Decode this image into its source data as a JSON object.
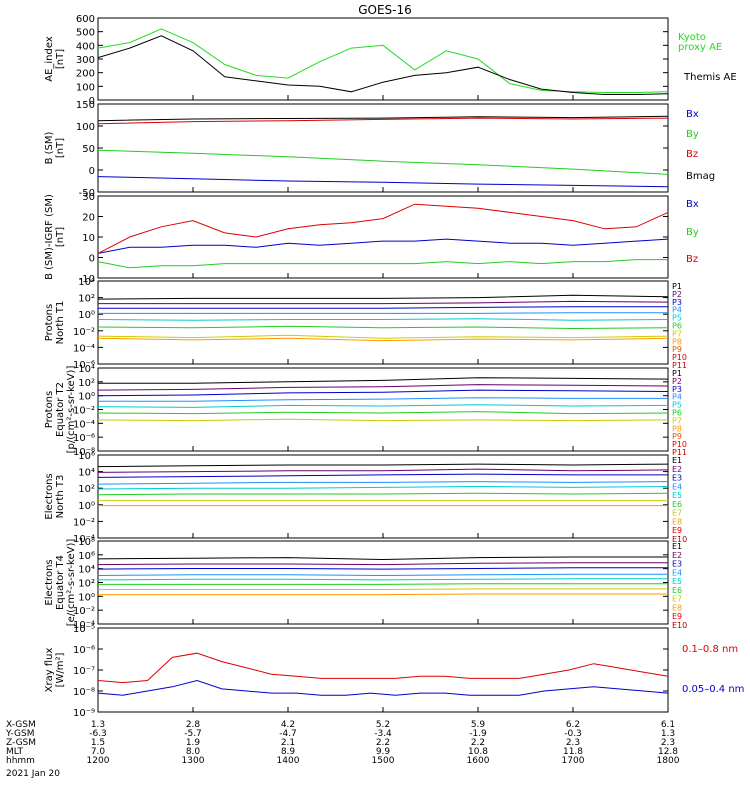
{
  "title": "GOES-16",
  "chart_data": [
    {
      "type": "line",
      "ylabel": "AE_index\n[nT]",
      "ylim": [
        0,
        600
      ],
      "yticks": [
        "600",
        "500",
        "400",
        "300",
        "200",
        "100",
        "0"
      ],
      "x": [
        "1200",
        "1220",
        "1240",
        "1300",
        "1320",
        "1340",
        "1400",
        "1420",
        "1440",
        "1500",
        "1520",
        "1540",
        "1600",
        "1620",
        "1640",
        "1700",
        "1720",
        "1740",
        "1800"
      ],
      "series": [
        {
          "name": "Kyoto\nproxy AE",
          "color": "#22dd22",
          "values": [
            380,
            420,
            520,
            420,
            260,
            180,
            160,
            280,
            380,
            400,
            220,
            360,
            300,
            120,
            70,
            60,
            55,
            55,
            60
          ]
        },
        {
          "name": "Themis AE",
          "color": "#000000",
          "values": [
            310,
            380,
            470,
            360,
            170,
            140,
            110,
            100,
            60,
            130,
            180,
            200,
            240,
            150,
            80,
            55,
            40,
            40,
            45
          ]
        }
      ]
    },
    {
      "type": "line",
      "ylabel": "B (SM)\n[nT]",
      "ylim": [
        -50,
        150
      ],
      "yticks": [
        "150",
        "100",
        "50",
        "0",
        "-50"
      ],
      "x": [
        "1200",
        "1300",
        "1400",
        "1500",
        "1600",
        "1700",
        "1800"
      ],
      "series": [
        {
          "name": "Bx",
          "color": "#0000cc",
          "values": [
            -15,
            -20,
            -25,
            -28,
            -32,
            -35,
            -38
          ]
        },
        {
          "name": "By",
          "color": "#22cc22",
          "values": [
            45,
            38,
            30,
            20,
            12,
            2,
            -10
          ]
        },
        {
          "name": "Bz",
          "color": "#dd0000",
          "values": [
            105,
            110,
            112,
            115,
            118,
            116,
            118
          ]
        },
        {
          "name": "Bmag",
          "color": "#000000",
          "values": [
            112,
            116,
            117,
            118,
            121,
            119,
            122
          ]
        }
      ]
    },
    {
      "type": "line",
      "ylabel": "B (SM)-IGRF (SM)\n[nT]",
      "ylim": [
        -10,
        30
      ],
      "yticks": [
        "30",
        "20",
        "10",
        "0",
        "-10"
      ],
      "x": [
        "1200",
        "1220",
        "1240",
        "1300",
        "1320",
        "1340",
        "1400",
        "1420",
        "1440",
        "1500",
        "1520",
        "1540",
        "1600",
        "1620",
        "1640",
        "1700",
        "1720",
        "1740",
        "1800"
      ],
      "series": [
        {
          "name": "Bx",
          "color": "#0000cc",
          "values": [
            2,
            5,
            5,
            6,
            6,
            5,
            7,
            6,
            7,
            8,
            8,
            9,
            8,
            7,
            7,
            6,
            7,
            8,
            9
          ]
        },
        {
          "name": "By",
          "color": "#22cc22",
          "values": [
            -2,
            -5,
            -4,
            -4,
            -3,
            -3,
            -3,
            -3,
            -3,
            -3,
            -3,
            -2,
            -3,
            -2,
            -3,
            -2,
            -2,
            -1,
            -1
          ]
        },
        {
          "name": "Bz",
          "color": "#dd0000",
          "values": [
            2,
            10,
            15,
            18,
            12,
            10,
            14,
            16,
            17,
            19,
            26,
            25,
            24,
            22,
            20,
            18,
            14,
            15,
            22
          ]
        }
      ]
    },
    {
      "type": "line",
      "ylabel": "Protons\nNorth T1",
      "ylim_log": [
        -7,
        4
      ],
      "yticks": [
        "10⁴",
        "10²",
        "10⁰",
        "10⁻²",
        "10⁻⁴",
        "10⁻⁶"
      ],
      "legend": [
        "P1",
        "P2",
        "P3",
        "P4",
        "P5",
        "P6",
        "P7",
        "P8",
        "P9",
        "P10",
        "P11"
      ],
      "series": [
        {
          "name": "P1",
          "color": "#000000",
          "log_values": [
            1.6,
            1.7,
            1.7,
            1.7,
            1.8,
            2.1,
            1.9
          ]
        },
        {
          "name": "P2",
          "color": "#6a006a",
          "log_values": [
            1.0,
            1.0,
            1.0,
            1.0,
            1.1,
            1.3,
            1.2
          ]
        },
        {
          "name": "P3",
          "color": "#0000cc",
          "log_values": [
            0.4,
            0.4,
            0.4,
            0.4,
            0.5,
            0.6,
            0.6
          ]
        },
        {
          "name": "P4",
          "color": "#1e90ff",
          "log_values": [
            -0.3,
            -0.3,
            -0.3,
            -0.3,
            -0.3,
            -0.2,
            -0.2
          ]
        },
        {
          "name": "P5",
          "color": "#00cccc",
          "log_values": [
            -1.1,
            -1.2,
            -1.1,
            -1.1,
            -1.0,
            -1.2,
            -1.1
          ]
        },
        {
          "name": "P6",
          "color": "#22cc22",
          "log_values": [
            -2.1,
            -2.2,
            -2.0,
            -2.2,
            -2.1,
            -2.3,
            -2.2
          ]
        },
        {
          "name": "P7",
          "color": "#cccc00",
          "log_values": [
            -3.3,
            -3.5,
            -3.2,
            -3.6,
            -3.4,
            -3.5,
            -3.3
          ]
        },
        {
          "name": "P8",
          "color": "#ff9900",
          "log_values": [
            -3.6,
            -3.8,
            -3.6,
            -3.9,
            -3.7,
            -3.8,
            -3.6
          ]
        }
      ],
      "legend_colors": [
        "#000000",
        "#6a006a",
        "#0000cc",
        "#1e90ff",
        "#00cccc",
        "#22cc22",
        "#cccc00",
        "#ff9900",
        "#dd5500",
        "#dd0000",
        "#cc0000"
      ]
    },
    {
      "type": "line",
      "ylabel": "Protons\nEquator T2\n[p/(cm²-s-sr-keV)]",
      "ylim_log": [
        -8,
        4
      ],
      "yticks": [
        "10⁴",
        "10²",
        "10⁰",
        "10⁻²",
        "10⁻⁴",
        "10⁻⁶",
        "10⁻⁸"
      ],
      "legend": [
        "P1",
        "P2",
        "P3",
        "P4",
        "P5",
        "P6",
        "P7",
        "P8",
        "P9",
        "P10",
        "P11"
      ],
      "series": [
        {
          "name": "P1",
          "color": "#000000",
          "log_values": [
            1.8,
            1.8,
            2.0,
            2.2,
            2.6,
            2.5,
            2.4
          ]
        },
        {
          "name": "P2",
          "color": "#6a006a",
          "log_values": [
            0.8,
            0.9,
            1.2,
            1.3,
            1.6,
            1.5,
            1.4
          ]
        },
        {
          "name": "P3",
          "color": "#0000cc",
          "log_values": [
            0.0,
            0.1,
            0.4,
            0.5,
            0.8,
            0.7,
            0.6
          ]
        },
        {
          "name": "P4",
          "color": "#1e90ff",
          "log_values": [
            -0.8,
            -0.8,
            -0.6,
            -0.5,
            -0.3,
            -0.4,
            -0.4
          ]
        },
        {
          "name": "P5",
          "color": "#00cccc",
          "log_values": [
            -1.6,
            -1.7,
            -1.4,
            -1.5,
            -1.3,
            -1.5,
            -1.4
          ]
        },
        {
          "name": "P6",
          "color": "#22cc22",
          "log_values": [
            -2.5,
            -2.6,
            -2.4,
            -2.5,
            -2.3,
            -2.6,
            -2.5
          ]
        },
        {
          "name": "P7",
          "color": "#cccc00",
          "log_values": [
            -3.5,
            -3.6,
            -3.4,
            -3.6,
            -3.5,
            -3.6,
            -3.5
          ]
        }
      ],
      "legend_colors": [
        "#000000",
        "#6a006a",
        "#0000cc",
        "#1e90ff",
        "#00cccc",
        "#22cc22",
        "#cccc00",
        "#ff9900",
        "#dd5500",
        "#dd0000",
        "#cc0000"
      ]
    },
    {
      "type": "line",
      "ylabel": "Electrons\nNorth T3",
      "ylim_log": [
        -4,
        6
      ],
      "yticks": [
        "10⁶",
        "10⁴",
        "10²",
        "10⁰",
        "10⁻²",
        "10⁻⁴"
      ],
      "legend": [
        "E1",
        "E2",
        "E3",
        "E4",
        "E5",
        "E6",
        "E7",
        "E8",
        "E9",
        "E10"
      ],
      "series": [
        {
          "name": "E1",
          "color": "#000000",
          "log_values": [
            4.6,
            4.7,
            4.8,
            4.8,
            4.9,
            4.8,
            4.9
          ]
        },
        {
          "name": "E2",
          "color": "#6a006a",
          "log_values": [
            3.9,
            4.0,
            4.1,
            4.1,
            4.3,
            4.1,
            4.2
          ]
        },
        {
          "name": "E3",
          "color": "#0000cc",
          "log_values": [
            3.3,
            3.4,
            3.5,
            3.6,
            3.7,
            3.6,
            3.6
          ]
        },
        {
          "name": "E4",
          "color": "#1e90ff",
          "log_values": [
            2.5,
            2.6,
            2.7,
            2.7,
            2.8,
            2.7,
            2.8
          ]
        },
        {
          "name": "E5",
          "color": "#00cccc",
          "log_values": [
            1.9,
            2.0,
            2.0,
            2.1,
            2.2,
            2.1,
            2.2
          ]
        },
        {
          "name": "E6",
          "color": "#22cc22",
          "log_values": [
            1.2,
            1.3,
            1.3,
            1.3,
            1.4,
            1.3,
            1.4
          ]
        },
        {
          "name": "E7",
          "color": "#cccc00",
          "log_values": [
            0.5,
            0.5,
            0.5,
            0.5,
            0.5,
            0.5,
            0.5
          ]
        },
        {
          "name": "E8",
          "color": "#ff9900",
          "log_values": [
            -0.1,
            -0.1,
            -0.1,
            -0.1,
            -0.1,
            -0.1,
            -0.1
          ]
        }
      ],
      "legend_colors": [
        "#000000",
        "#6a006a",
        "#0000cc",
        "#1e90ff",
        "#00cccc",
        "#22cc22",
        "#cccc00",
        "#ff9900",
        "#dd0000",
        "#aa0000"
      ]
    },
    {
      "type": "line",
      "ylabel": "Electrons\nEquator T4\n[e/(cm²-s-sr-keV)]",
      "ylim_log": [
        -5,
        8
      ],
      "yticks": [
        "10⁸",
        "10⁶",
        "10⁴",
        "10²",
        "10⁰",
        "10⁻²",
        "10⁻⁴"
      ],
      "legend": [
        "E1",
        "E2",
        "E3",
        "E4",
        "E5",
        "E6",
        "E7",
        "E8",
        "E9",
        "E10"
      ],
      "series": [
        {
          "name": "E1",
          "color": "#000000",
          "log_values": [
            5.2,
            5.3,
            5.4,
            5.1,
            5.4,
            5.5,
            5.5
          ]
        },
        {
          "name": "E2",
          "color": "#6a006a",
          "log_values": [
            4.3,
            4.4,
            4.4,
            4.3,
            4.5,
            4.6,
            4.6
          ]
        },
        {
          "name": "E3",
          "color": "#0000cc",
          "log_values": [
            3.6,
            3.7,
            3.7,
            3.6,
            3.7,
            3.8,
            3.8
          ]
        },
        {
          "name": "E4",
          "color": "#1e90ff",
          "log_values": [
            2.6,
            2.7,
            2.7,
            2.6,
            2.7,
            2.8,
            2.8
          ]
        },
        {
          "name": "E5",
          "color": "#00cccc",
          "log_values": [
            1.9,
            2.0,
            2.0,
            1.9,
            2.0,
            2.1,
            2.1
          ]
        },
        {
          "name": "E6",
          "color": "#22cc22",
          "log_values": [
            1.2,
            1.2,
            1.2,
            1.2,
            1.3,
            1.3,
            1.3
          ]
        },
        {
          "name": "E7",
          "color": "#cccc00",
          "log_values": [
            0.4,
            0.4,
            0.4,
            0.4,
            0.5,
            0.5,
            0.5
          ]
        },
        {
          "name": "E8",
          "color": "#ff9900",
          "log_values": [
            -0.4,
            -0.4,
            -0.4,
            -0.4,
            -0.3,
            -0.3,
            -0.3
          ]
        }
      ],
      "legend_colors": [
        "#000000",
        "#6a006a",
        "#0000cc",
        "#1e90ff",
        "#00cccc",
        "#22cc22",
        "#cccc00",
        "#ff9900",
        "#dd0000",
        "#aa0000"
      ]
    },
    {
      "type": "line",
      "ylabel": "Xray flux\n[W/m²]",
      "ylim_log": [
        -9,
        -5
      ],
      "yticks": [
        "10⁻⁵",
        "10⁻⁶",
        "10⁻⁷",
        "10⁻⁸",
        "10⁻⁹"
      ],
      "x": [
        "1200",
        "1220",
        "1240",
        "1250",
        "1300",
        "1310",
        "1320",
        "1340",
        "1400",
        "1420",
        "1440",
        "1500",
        "1520",
        "1540",
        "1600",
        "1620",
        "1640",
        "1700",
        "1710",
        "1720",
        "1730",
        "1740",
        "1750",
        "1800"
      ],
      "series": [
        {
          "name": "0.1–0.8 nm",
          "color": "#dd0000",
          "log_values": [
            -7.5,
            -7.6,
            -7.5,
            -6.4,
            -6.2,
            -6.6,
            -6.9,
            -7.2,
            -7.3,
            -7.4,
            -7.4,
            -7.4,
            -7.4,
            -7.3,
            -7.3,
            -7.4,
            -7.4,
            -7.4,
            -7.2,
            -7.0,
            -6.7,
            -6.9,
            -7.1,
            -7.3
          ]
        },
        {
          "name": "0.05–0.4 nm",
          "color": "#0000cc",
          "log_values": [
            -8.1,
            -8.2,
            -8.0,
            -7.8,
            -7.5,
            -7.9,
            -8.0,
            -8.1,
            -8.1,
            -8.2,
            -8.2,
            -8.1,
            -8.2,
            -8.1,
            -8.1,
            -8.2,
            -8.2,
            -8.2,
            -8.0,
            -7.9,
            -7.8,
            -7.9,
            -8.0,
            -8.1
          ]
        }
      ]
    }
  ],
  "orbit_table": {
    "row_labels": [
      "X-GSM",
      "Y-GSM",
      "Z-GSM",
      "MLT",
      "hhmm"
    ],
    "columns": [
      [
        "1.3",
        "-6.3",
        "1.5",
        "7.0",
        "1200"
      ],
      [
        "2.8",
        "-5.7",
        "1.9",
        "8.0",
        "1300"
      ],
      [
        "4.2",
        "-4.7",
        "2.1",
        "8.9",
        "1400"
      ],
      [
        "5.2",
        "-3.4",
        "2.2",
        "9.9",
        "1500"
      ],
      [
        "5.9",
        "-1.9",
        "2.2",
        "10.8",
        "1600"
      ],
      [
        "6.2",
        "-0.3",
        "2.3",
        "11.8",
        "1700"
      ],
      [
        "6.1",
        "1.3",
        "2.3",
        "12.8",
        "1800"
      ]
    ],
    "date": "2021 Jan 20"
  }
}
